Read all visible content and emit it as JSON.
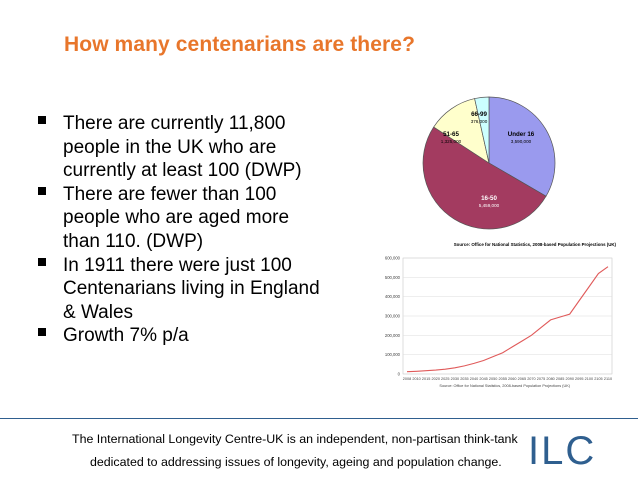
{
  "slide": {
    "title": "How many centenarians are there?",
    "bullets": [
      "There are currently 11,800 people in the UK who are currently at least 100 (DWP)",
      "There are fewer than 100 people who are aged more than 110. (DWP)",
      "In 1911 there were just 100 Centenarians living in England & Wales",
      "Growth 7% p/a"
    ],
    "accent_color": "#e8762b"
  },
  "chart_data": [
    {
      "type": "pie",
      "labels": [
        "Under 16",
        "16-50",
        "51-65",
        "66-99"
      ],
      "values": [
        3590000,
        5459000,
        1325000,
        376000
      ],
      "value_labels": [
        "3,590,000",
        "5,459,000",
        "1,325,000",
        "376,000"
      ],
      "colors": [
        "#9a9aee",
        "#a33b60",
        "#ffffcc",
        "#ccffff"
      ],
      "source": "Source: Office for National Statistics, 2008-based Population Projections (UK)"
    },
    {
      "type": "line",
      "x": [
        2008,
        2010,
        2015,
        2020,
        2025,
        2030,
        2035,
        2040,
        2045,
        2050,
        2055,
        2060,
        2065,
        2070,
        2075,
        2080,
        2085,
        2090,
        2095,
        2100,
        2105,
        2110
      ],
      "y": [
        12000,
        14000,
        17000,
        20000,
        25000,
        32000,
        42000,
        55000,
        70000,
        90000,
        110000,
        140000,
        170000,
        200000,
        240000,
        280000,
        295000,
        310000,
        380000,
        450000,
        520000,
        555000
      ],
      "xticks": [
        "2008",
        "2010",
        "2015",
        "2020",
        "2025",
        "2030",
        "2035",
        "2040",
        "2045",
        "2050",
        "2055",
        "2060",
        "2065",
        "2070",
        "2075",
        "2080",
        "2085",
        "2090",
        "2095",
        "2100",
        "2105",
        "2110"
      ],
      "yticks": [
        "0",
        "100,000",
        "200,000",
        "300,000",
        "400,000",
        "500,000",
        "600,000"
      ],
      "ylim": [
        0,
        600000
      ],
      "grid": true,
      "color": "#e05a5a",
      "source": "Source: Office for National Statistics, 2008-based Population Projections (UK)"
    }
  ],
  "footer": {
    "line1": "The International Longevity Centre-UK is an independent, non-partisan think-tank",
    "line2": "dedicated to addressing issues of longevity, ageing and population change.",
    "logo_text": "ILC",
    "logo_color": "#2f5f8f"
  }
}
